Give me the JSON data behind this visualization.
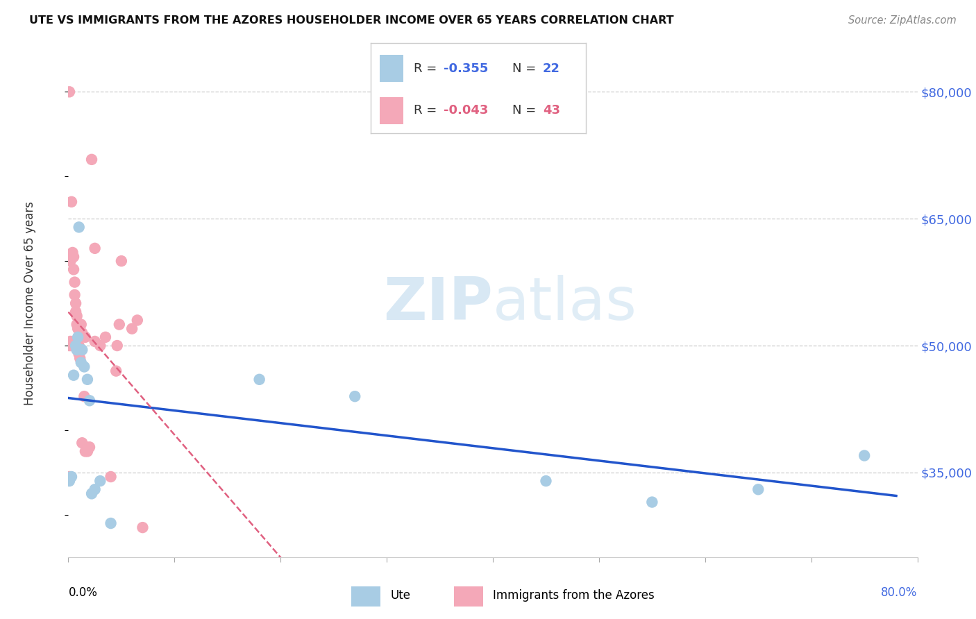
{
  "title": "UTE VS IMMIGRANTS FROM THE AZORES HOUSEHOLDER INCOME OVER 65 YEARS CORRELATION CHART",
  "source": "Source: ZipAtlas.com",
  "ylabel": "Householder Income Over 65 years",
  "yticks": [
    35000,
    50000,
    65000,
    80000
  ],
  "ytick_labels": [
    "$35,000",
    "$50,000",
    "$65,000",
    "$80,000"
  ],
  "color_ute": "#a8cce4",
  "color_azores": "#f4a8b8",
  "line_color_ute": "#2255cc",
  "line_color_azores": "#e06080",
  "watermark_zip": "ZIP",
  "watermark_atlas": "atlas",
  "ute_x": [
    0.001,
    0.003,
    0.005,
    0.007,
    0.008,
    0.009,
    0.01,
    0.012,
    0.013,
    0.015,
    0.018,
    0.02,
    0.022,
    0.025,
    0.03,
    0.04,
    0.18,
    0.27,
    0.45,
    0.55,
    0.65,
    0.75
  ],
  "ute_y": [
    34000,
    34500,
    46500,
    50000,
    49500,
    51000,
    64000,
    48000,
    49500,
    47500,
    46000,
    43500,
    32500,
    33000,
    34000,
    29000,
    46000,
    44000,
    34000,
    31500,
    33000,
    37000
  ],
  "azores_x": [
    0.001,
    0.001,
    0.001,
    0.002,
    0.002,
    0.003,
    0.003,
    0.004,
    0.005,
    0.005,
    0.006,
    0.006,
    0.007,
    0.007,
    0.008,
    0.008,
    0.009,
    0.009,
    0.01,
    0.01,
    0.011,
    0.012,
    0.013,
    0.013,
    0.015,
    0.016,
    0.016,
    0.017,
    0.018,
    0.02,
    0.022,
    0.025,
    0.025,
    0.03,
    0.035,
    0.04,
    0.045,
    0.046,
    0.048,
    0.05,
    0.06,
    0.065,
    0.07
  ],
  "azores_y": [
    80000,
    50000,
    34500,
    60000,
    50500,
    67000,
    50000,
    61000,
    60500,
    59000,
    57500,
    56000,
    55000,
    54000,
    53500,
    52500,
    52000,
    50500,
    50000,
    49000,
    48500,
    52500,
    51500,
    38500,
    44000,
    51000,
    37500,
    38000,
    37500,
    38000,
    72000,
    61500,
    50500,
    50000,
    51000,
    34500,
    47000,
    50000,
    52500,
    60000,
    52000,
    53000,
    28500
  ],
  "xmin": 0.0,
  "xmax": 0.8,
  "ymin": 25000,
  "ymax": 85000
}
